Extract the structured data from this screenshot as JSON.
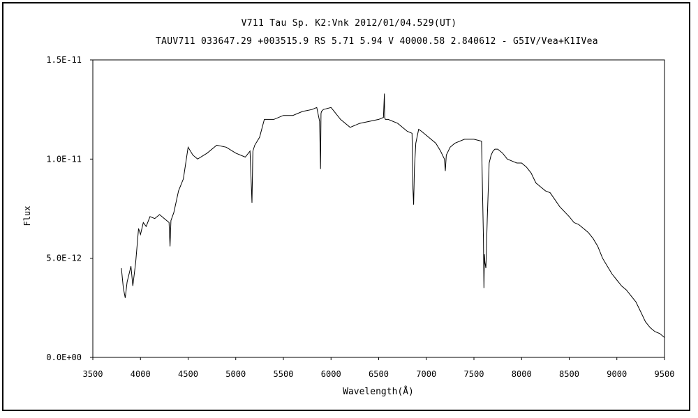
{
  "chart_data": {
    "type": "line",
    "title": "V711 Tau    Sp. K2:Vnk    2012/01/04.529(UT)",
    "subtitle": "TAUV711 033647.29 +003515.9 RS 5.71 5.94 V 40000.58 2.840612 - G5IV/Vea+K1IVea",
    "xlabel": "Wavelength(Å)",
    "ylabel": "Flux",
    "xlim": [
      3500,
      9500
    ],
    "ylim": [
      0,
      1.5e-11
    ],
    "xticks": [
      "3500",
      "4000",
      "4500",
      "5000",
      "5500",
      "6000",
      "6500",
      "7000",
      "7500",
      "8000",
      "8500",
      "9000",
      "9500"
    ],
    "yticks": [
      "0.0E+00",
      "5.0E-12",
      "1.0E-11",
      "1.5E-11"
    ],
    "grid": false,
    "series": [
      {
        "values_unit": "1e-12",
        "x": [
          3800,
          3820,
          3840,
          3860,
          3880,
          3900,
          3920,
          3950,
          3980,
          4000,
          4030,
          4060,
          4100,
          4150,
          4200,
          4250,
          4300,
          4310,
          4320,
          4350,
          4400,
          4450,
          4500,
          4550,
          4600,
          4700,
          4800,
          4900,
          5000,
          5100,
          5150,
          5170,
          5180,
          5200,
          5250,
          5300,
          5400,
          5500,
          5600,
          5700,
          5800,
          5850,
          5880,
          5890,
          5895,
          5900,
          5920,
          6000,
          6100,
          6200,
          6300,
          6400,
          6500,
          6550,
          6560,
          6563,
          6570,
          6600,
          6700,
          6800,
          6850,
          6860,
          6867,
          6875,
          6890,
          6920,
          6950,
          7000,
          7100,
          7150,
          7190,
          7200,
          7210,
          7250,
          7300,
          7400,
          7500,
          7580,
          7600,
          7605,
          7610,
          7615,
          7625,
          7640,
          7660,
          7680,
          7700,
          7720,
          7750,
          7800,
          7850,
          7900,
          7950,
          8000,
          8050,
          8100,
          8150,
          8200,
          8250,
          8300,
          8400,
          8500,
          8550,
          8600,
          8650,
          8700,
          8750,
          8800,
          8850,
          8900,
          8950,
          9000,
          9050,
          9100,
          9150,
          9200,
          9250,
          9300,
          9350,
          9400,
          9450,
          9500
        ],
        "y": [
          4.5,
          3.5,
          3.0,
          3.8,
          4.2,
          4.6,
          3.6,
          4.8,
          6.5,
          6.2,
          6.8,
          6.6,
          7.1,
          7.0,
          7.2,
          7.0,
          6.8,
          5.6,
          6.9,
          7.3,
          8.4,
          9.0,
          10.6,
          10.2,
          10.0,
          10.3,
          10.7,
          10.6,
          10.3,
          10.1,
          10.4,
          7.8,
          10.4,
          10.7,
          11.1,
          12.0,
          12.0,
          12.2,
          12.2,
          12.4,
          12.5,
          12.6,
          11.9,
          9.5,
          12.3,
          12.4,
          12.5,
          12.6,
          12.0,
          11.6,
          11.8,
          11.9,
          12.0,
          12.1,
          13.3,
          12.1,
          12.0,
          12.0,
          11.8,
          11.4,
          11.3,
          8.5,
          7.7,
          9.5,
          10.8,
          11.5,
          11.4,
          11.2,
          10.8,
          10.4,
          10.0,
          9.4,
          10.2,
          10.6,
          10.8,
          11.0,
          11.0,
          10.9,
          6.0,
          3.5,
          5.2,
          4.8,
          4.5,
          7.0,
          9.8,
          10.2,
          10.4,
          10.5,
          10.5,
          10.3,
          10.0,
          9.9,
          9.8,
          9.8,
          9.6,
          9.3,
          8.8,
          8.6,
          8.4,
          8.3,
          7.6,
          7.1,
          6.8,
          6.7,
          6.5,
          6.3,
          6.0,
          5.6,
          5.0,
          4.6,
          4.2,
          3.9,
          3.6,
          3.4,
          3.1,
          2.8,
          2.3,
          1.8,
          1.5,
          1.3,
          1.2,
          1.0
        ]
      }
    ]
  }
}
